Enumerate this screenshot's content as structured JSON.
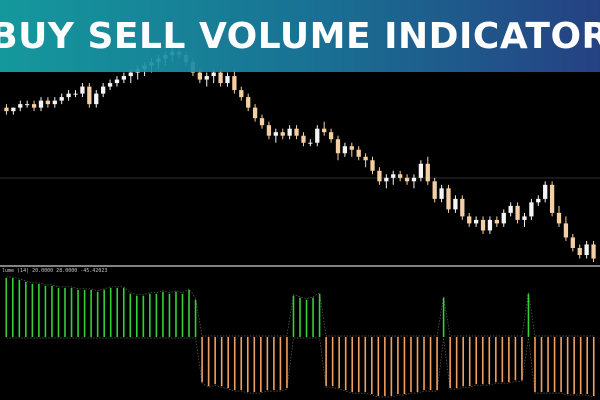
{
  "banner": {
    "title": "BUY SELL VOLUME INDICATOR"
  },
  "indicator": {
    "header": "lume (14) 20.0000 28.0000 -45.42023"
  },
  "colors": {
    "background": "#000000",
    "bull_candle": "#f5f5f5",
    "bear_candle": "#f4cfa4",
    "buy_volume": "#35d035",
    "sell_volume": "#f0a060",
    "separator": "#cfcfcf",
    "level_line": "#606060",
    "banner_start": "#16a4a8",
    "banner_end": "#28468c"
  },
  "chart_data": [
    {
      "type": "candlestick",
      "title": "",
      "candles": [
        {
          "o": 5,
          "h": 6,
          "l": 3,
          "c": 4
        },
        {
          "o": 4,
          "h": 5,
          "l": 3,
          "c": 5
        },
        {
          "o": 5,
          "h": 7,
          "l": 4,
          "c": 6
        },
        {
          "o": 6,
          "h": 7,
          "l": 5,
          "c": 6
        },
        {
          "o": 6,
          "h": 7,
          "l": 4,
          "c": 5
        },
        {
          "o": 5,
          "h": 8,
          "l": 4,
          "c": 7
        },
        {
          "o": 7,
          "h": 8,
          "l": 5,
          "c": 6
        },
        {
          "o": 6,
          "h": 8,
          "l": 5,
          "c": 7
        },
        {
          "o": 7,
          "h": 9,
          "l": 6,
          "c": 8
        },
        {
          "o": 8,
          "h": 10,
          "l": 7,
          "c": 9
        },
        {
          "o": 9,
          "h": 10,
          "l": 8,
          "c": 9
        },
        {
          "o": 9,
          "h": 12,
          "l": 8,
          "c": 11
        },
        {
          "o": 11,
          "h": 12,
          "l": 5,
          "c": 6
        },
        {
          "o": 6,
          "h": 10,
          "l": 5,
          "c": 9
        },
        {
          "o": 9,
          "h": 12,
          "l": 8,
          "c": 11
        },
        {
          "o": 11,
          "h": 13,
          "l": 10,
          "c": 12
        },
        {
          "o": 12,
          "h": 14,
          "l": 11,
          "c": 13
        },
        {
          "o": 13,
          "h": 15,
          "l": 12,
          "c": 14
        },
        {
          "o": 14,
          "h": 16,
          "l": 12,
          "c": 15
        },
        {
          "o": 15,
          "h": 17,
          "l": 13,
          "c": 16
        },
        {
          "o": 16,
          "h": 18,
          "l": 14,
          "c": 17
        },
        {
          "o": 17,
          "h": 19,
          "l": 15,
          "c": 18
        },
        {
          "o": 18,
          "h": 20,
          "l": 16,
          "c": 19
        },
        {
          "o": 19,
          "h": 21,
          "l": 17,
          "c": 20
        },
        {
          "o": 20,
          "h": 22,
          "l": 18,
          "c": 21
        },
        {
          "o": 21,
          "h": 22,
          "l": 19,
          "c": 20
        },
        {
          "o": 20,
          "h": 21,
          "l": 17,
          "c": 18
        },
        {
          "o": 18,
          "h": 19,
          "l": 14,
          "c": 15
        },
        {
          "o": 15,
          "h": 16,
          "l": 12,
          "c": 13
        },
        {
          "o": 13,
          "h": 15,
          "l": 11,
          "c": 14
        },
        {
          "o": 14,
          "h": 16,
          "l": 12,
          "c": 15
        },
        {
          "o": 15,
          "h": 16,
          "l": 11,
          "c": 12
        },
        {
          "o": 12,
          "h": 15,
          "l": 11,
          "c": 14
        },
        {
          "o": 14,
          "h": 16,
          "l": 9,
          "c": 10
        },
        {
          "o": 10,
          "h": 11,
          "l": 7,
          "c": 8
        },
        {
          "o": 8,
          "h": 9,
          "l": 4,
          "c": 5
        },
        {
          "o": 5,
          "h": 6,
          "l": 1,
          "c": 2
        },
        {
          "o": 2,
          "h": 3,
          "l": -1,
          "c": 0
        },
        {
          "o": 0,
          "h": 1,
          "l": -4,
          "c": -3
        },
        {
          "o": -3,
          "h": -1,
          "l": -5,
          "c": -2
        },
        {
          "o": -2,
          "h": -1,
          "l": -4,
          "c": -3
        },
        {
          "o": -3,
          "h": 0,
          "l": -4,
          "c": -1
        },
        {
          "o": -1,
          "h": 0,
          "l": -4,
          "c": -3
        },
        {
          "o": -3,
          "h": -2,
          "l": -6,
          "c": -5
        },
        {
          "o": -5,
          "h": -4,
          "l": -6,
          "c": -5
        },
        {
          "o": -5,
          "h": 0,
          "l": -6,
          "c": -1
        },
        {
          "o": -1,
          "h": 1,
          "l": -3,
          "c": -2
        },
        {
          "o": -2,
          "h": -1,
          "l": -5,
          "c": -4
        },
        {
          "o": -4,
          "h": -3,
          "l": -10,
          "c": -8
        },
        {
          "o": -8,
          "h": -5,
          "l": -9,
          "c": -6
        },
        {
          "o": -6,
          "h": -5,
          "l": -9,
          "c": -7
        },
        {
          "o": -7,
          "h": -6,
          "l": -10,
          "c": -9
        },
        {
          "o": -9,
          "h": -8,
          "l": -12,
          "c": -10
        },
        {
          "o": -10,
          "h": -9,
          "l": -14,
          "c": -13
        },
        {
          "o": -13,
          "h": -12,
          "l": -17,
          "c": -16
        },
        {
          "o": -16,
          "h": -14,
          "l": -18,
          "c": -15
        },
        {
          "o": -15,
          "h": -13,
          "l": -17,
          "c": -14
        },
        {
          "o": -14,
          "h": -13,
          "l": -16,
          "c": -15
        },
        {
          "o": -15,
          "h": -14,
          "l": -17,
          "c": -16
        },
        {
          "o": -16,
          "h": -14,
          "l": -18,
          "c": -15
        },
        {
          "o": -15,
          "h": -10,
          "l": -16,
          "c": -11
        },
        {
          "o": -11,
          "h": -9,
          "l": -17,
          "c": -16
        },
        {
          "o": -16,
          "h": -15,
          "l": -22,
          "c": -21
        },
        {
          "o": -21,
          "h": -17,
          "l": -22,
          "c": -18
        },
        {
          "o": -18,
          "h": -17,
          "l": -25,
          "c": -24
        },
        {
          "o": -24,
          "h": -20,
          "l": -25,
          "c": -21
        },
        {
          "o": -21,
          "h": -20,
          "l": -27,
          "c": -26
        },
        {
          "o": -26,
          "h": -25,
          "l": -29,
          "c": -28
        },
        {
          "o": -28,
          "h": -26,
          "l": -29,
          "c": -27
        },
        {
          "o": -27,
          "h": -26,
          "l": -31,
          "c": -30
        },
        {
          "o": -30,
          "h": -26,
          "l": -31,
          "c": -27
        },
        {
          "o": -27,
          "h": -26,
          "l": -29,
          "c": -28
        },
        {
          "o": -28,
          "h": -24,
          "l": -29,
          "c": -25
        },
        {
          "o": -25,
          "h": -22,
          "l": -26,
          "c": -23
        },
        {
          "o": -23,
          "h": -22,
          "l": -28,
          "c": -27
        },
        {
          "o": -27,
          "h": -25,
          "l": -29,
          "c": -26
        },
        {
          "o": -26,
          "h": -21,
          "l": -27,
          "c": -22
        },
        {
          "o": -22,
          "h": -20,
          "l": -23,
          "c": -21
        },
        {
          "o": -21,
          "h": -16,
          "l": -22,
          "c": -17
        },
        {
          "o": -17,
          "h": -16,
          "l": -26,
          "c": -25
        },
        {
          "o": -25,
          "h": -23,
          "l": -29,
          "c": -28
        },
        {
          "o": -28,
          "h": -26,
          "l": -33,
          "c": -32
        },
        {
          "o": -32,
          "h": -31,
          "l": -36,
          "c": -35
        },
        {
          "o": -35,
          "h": -34,
          "l": -38,
          "c": -37
        },
        {
          "o": -37,
          "h": -33,
          "l": -38,
          "c": -34
        },
        {
          "o": -34,
          "h": -33,
          "l": -39,
          "c": -38
        }
      ]
    },
    {
      "type": "bar",
      "title": "",
      "values": [
        30,
        30,
        29,
        28,
        27,
        27,
        26,
        26,
        25,
        25,
        25,
        24,
        24,
        24,
        23,
        24,
        25,
        25,
        25,
        22,
        21,
        21,
        22,
        22,
        23,
        22,
        23,
        22,
        24,
        19,
        -23,
        -25,
        -24,
        -25,
        -26,
        -27,
        -27,
        -28,
        -28,
        -28,
        -27,
        -27,
        -27,
        -26,
        21,
        20,
        19,
        20,
        22,
        -25,
        -25,
        -26,
        -27,
        -28,
        -28,
        -28,
        -29,
        -30,
        -30,
        -30,
        -29,
        -29,
        -28,
        -28,
        -27,
        -27,
        -27,
        20,
        -26,
        -26,
        -25,
        -25,
        -24,
        -24,
        -24,
        -23,
        -23,
        -23,
        -22,
        -22,
        22,
        -28,
        -28,
        -28,
        -28,
        -28,
        -29,
        -29,
        -29,
        -29,
        -30
      ],
      "buy_reference": 30,
      "sell_reference": -30
    }
  ]
}
